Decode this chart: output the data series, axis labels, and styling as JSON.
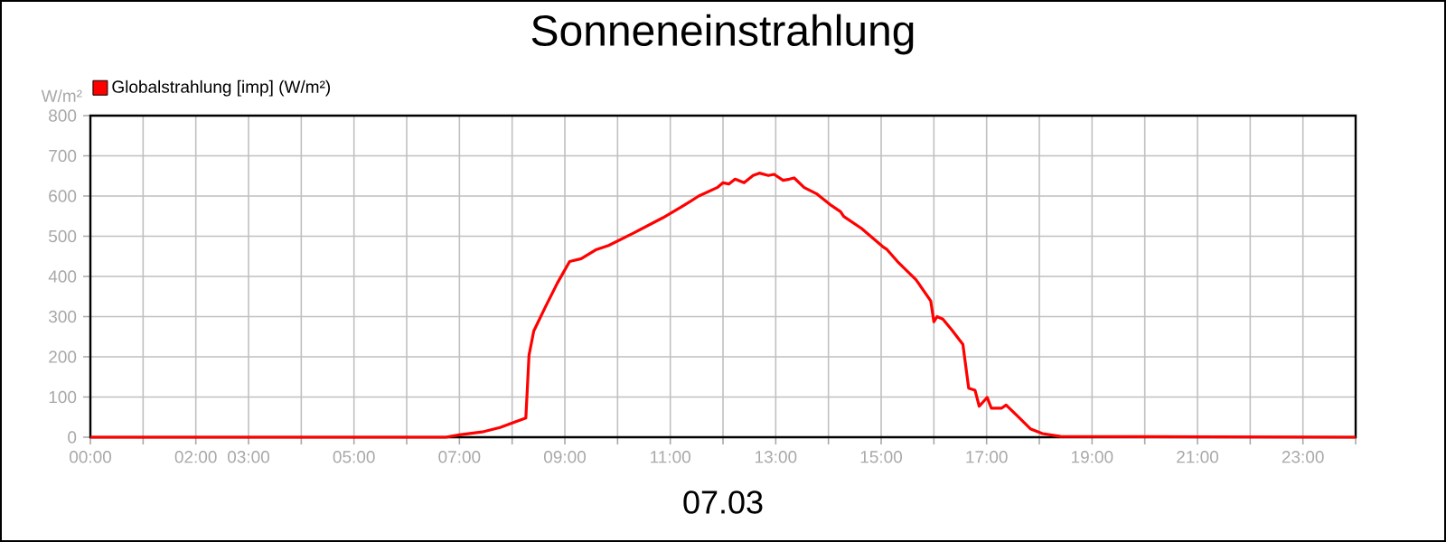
{
  "chart_data": {
    "type": "line",
    "title": "Sonneneinstrahlung",
    "xlabel": "07.03",
    "ylabel": "W/m²",
    "xlim": [
      0,
      24
    ],
    "ylim": [
      0,
      800
    ],
    "xticks": [
      {
        "value": 0,
        "label": "00:00"
      },
      {
        "value": 1,
        "label": null
      },
      {
        "value": 2,
        "label": "02:00"
      },
      {
        "value": 3,
        "label": "03:00"
      },
      {
        "value": 4,
        "label": null
      },
      {
        "value": 5,
        "label": "05:00"
      },
      {
        "value": 6,
        "label": null
      },
      {
        "value": 7,
        "label": "07:00"
      },
      {
        "value": 8,
        "label": null
      },
      {
        "value": 9,
        "label": "09:00"
      },
      {
        "value": 10,
        "label": null
      },
      {
        "value": 11,
        "label": "11:00"
      },
      {
        "value": 12,
        "label": null
      },
      {
        "value": 13,
        "label": "13:00"
      },
      {
        "value": 14,
        "label": null
      },
      {
        "value": 15,
        "label": "15:00"
      },
      {
        "value": 16,
        "label": null
      },
      {
        "value": 17,
        "label": "17:00"
      },
      {
        "value": 18,
        "label": null
      },
      {
        "value": 19,
        "label": "19:00"
      },
      {
        "value": 20,
        "label": null
      },
      {
        "value": 21,
        "label": "21:00"
      },
      {
        "value": 22,
        "label": null
      },
      {
        "value": 23,
        "label": "23:00"
      },
      {
        "value": 24,
        "label": null
      }
    ],
    "yticks": [
      0,
      100,
      200,
      300,
      400,
      500,
      600,
      700,
      800
    ],
    "grid": true,
    "legend": "top left",
    "marker": "none",
    "line_style": "solid",
    "series": [
      {
        "name": "Globalstrahlung [imp] (W/m²)",
        "color": "#ff0000",
        "x": [
          0,
          6.74,
          7.0,
          7.43,
          7.77,
          8.06,
          8.26,
          8.32,
          8.41,
          8.63,
          8.86,
          9.09,
          9.31,
          9.6,
          9.83,
          10.29,
          10.86,
          11.2,
          11.54,
          11.89,
          12.0,
          12.11,
          12.23,
          12.4,
          12.57,
          12.69,
          12.86,
          12.97,
          13.14,
          13.26,
          13.35,
          13.54,
          13.77,
          14.06,
          14.23,
          14.29,
          14.63,
          14.8,
          15.03,
          15.11,
          15.31,
          15.66,
          15.94,
          16.0,
          16.06,
          16.17,
          16.34,
          16.55,
          16.66,
          16.78,
          16.86,
          17.01,
          17.09,
          17.28,
          17.37,
          17.6,
          17.83,
          18.06,
          18.4,
          24
        ],
        "values": [
          0,
          0,
          6,
          13,
          24,
          38,
          48,
          204,
          264,
          324,
          384,
          437,
          444,
          467,
          477,
          507,
          546,
          572,
          600,
          621,
          633,
          630,
          642,
          633,
          651,
          657,
          651,
          654,
          639,
          642,
          645,
          621,
          606,
          576,
          561,
          549,
          519,
          500,
          474,
          467,
          437,
          392,
          339,
          287,
          300,
          294,
          267,
          231,
          122,
          117,
          77,
          99,
          72,
          72,
          80,
          51,
          21,
          9,
          2,
          0
        ]
      }
    ]
  }
}
